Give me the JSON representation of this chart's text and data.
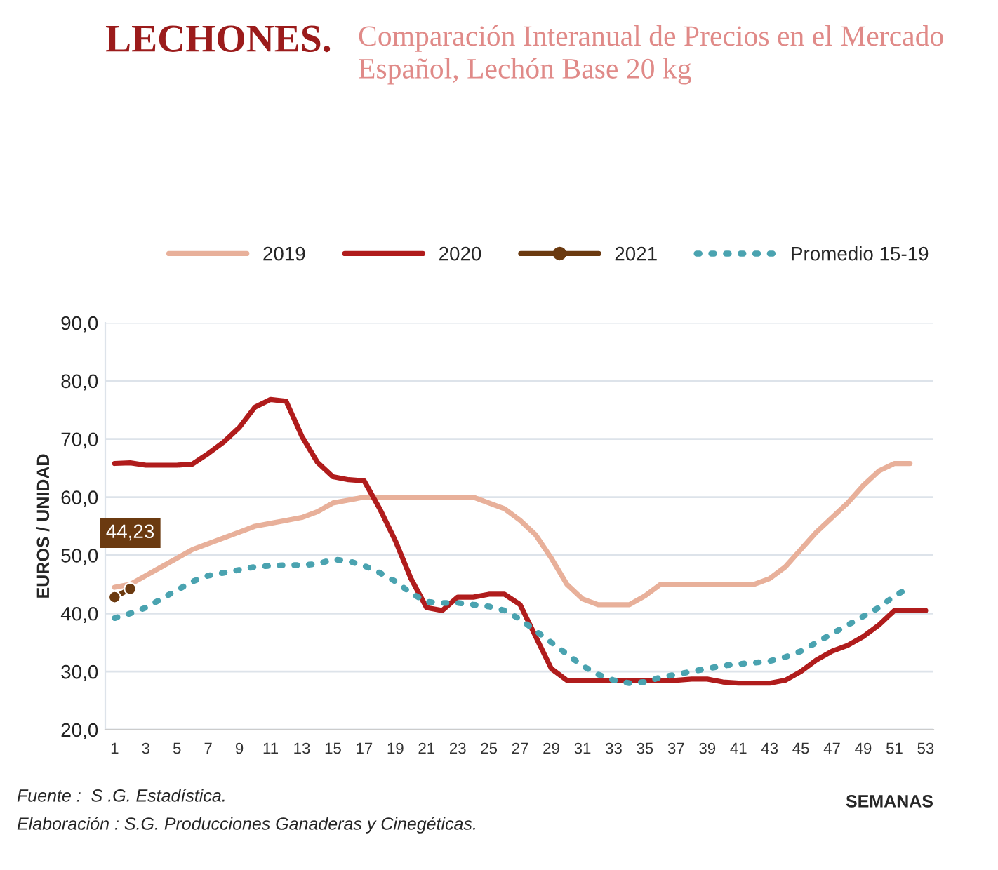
{
  "chart_data": {
    "type": "line",
    "title": "LECHONES.",
    "subtitle": "Comparación Interanual de Precios en el Mercado Español, Lechón Base 20 kg",
    "xlabel": "SEMANAS",
    "ylabel": "EUROS / UNIDAD",
    "x": [
      1,
      2,
      3,
      4,
      5,
      6,
      7,
      8,
      9,
      10,
      11,
      12,
      13,
      14,
      15,
      16,
      17,
      18,
      19,
      20,
      21,
      22,
      23,
      24,
      25,
      26,
      27,
      28,
      29,
      30,
      31,
      32,
      33,
      34,
      35,
      36,
      37,
      38,
      39,
      40,
      41,
      42,
      43,
      44,
      45,
      46,
      47,
      48,
      49,
      50,
      51,
      52,
      53
    ],
    "series": [
      {
        "name": "2019",
        "color": "#e8b09a",
        "line_style": "solid",
        "marker": "none",
        "values": [
          44.5,
          45,
          46.5,
          48,
          49.5,
          51,
          52,
          53,
          54,
          55,
          55.5,
          56,
          56.5,
          57.5,
          59,
          59.5,
          60,
          60,
          60,
          60,
          60,
          60,
          60,
          60,
          59,
          58,
          56,
          53.5,
          49.5,
          45,
          42.5,
          41.5,
          41.5,
          41.5,
          43,
          45,
          45,
          45,
          45,
          45,
          45,
          45,
          46,
          48,
          51,
          54,
          56.5,
          59,
          62,
          64.5,
          65.8,
          65.8,
          null
        ]
      },
      {
        "name": "2020",
        "color": "#b01c1c",
        "line_style": "solid",
        "marker": "none",
        "values": [
          65.8,
          65.9,
          65.5,
          65.5,
          65.5,
          65.7,
          67.5,
          69.5,
          72,
          75.5,
          76.8,
          76.5,
          70.5,
          66,
          63.5,
          63,
          62.8,
          58,
          52.5,
          46,
          41,
          40.5,
          42.8,
          42.8,
          43.3,
          43.3,
          41.5,
          36,
          30.5,
          28.5,
          28.5,
          28.5,
          28.5,
          28.5,
          28.5,
          28.5,
          28.5,
          28.7,
          28.7,
          28.2,
          28,
          28,
          28,
          28.5,
          30,
          32,
          33.5,
          34.5,
          36,
          38,
          40.5,
          40.5,
          40.5
        ]
      },
      {
        "name": "2021",
        "color": "#6b3a10",
        "line_style": "solid",
        "marker": "circle",
        "values": [
          42.8,
          44.23,
          null,
          null,
          null,
          null,
          null,
          null,
          null,
          null,
          null,
          null,
          null,
          null,
          null,
          null,
          null,
          null,
          null,
          null,
          null,
          null,
          null,
          null,
          null,
          null,
          null,
          null,
          null,
          null,
          null,
          null,
          null,
          null,
          null,
          null,
          null,
          null,
          null,
          null,
          null,
          null,
          null,
          null,
          null,
          null,
          null,
          null,
          null,
          null,
          null,
          null,
          null
        ],
        "value_labels": [
          null,
          "44,23",
          null,
          null,
          null,
          null,
          null,
          null,
          null,
          null,
          null,
          null,
          null,
          null,
          null,
          null,
          null,
          null,
          null,
          null,
          null,
          null,
          null,
          null,
          null,
          null,
          null,
          null,
          null,
          null,
          null,
          null,
          null,
          null,
          null,
          null,
          null,
          null,
          null,
          null,
          null,
          null,
          null,
          null,
          null,
          null,
          null,
          null,
          null,
          null,
          null,
          null,
          null
        ]
      },
      {
        "name": "Promedio 15-19",
        "color": "#4aa3b0",
        "line_style": "dotted",
        "marker": "none",
        "values": [
          39.2,
          40,
          41,
          42.5,
          44,
          45.5,
          46.5,
          47,
          47.5,
          48,
          48.2,
          48.3,
          48.3,
          48.5,
          49.3,
          49,
          48.2,
          47,
          45.5,
          43.5,
          42,
          41.8,
          41.8,
          41.5,
          41.2,
          40.5,
          39,
          37,
          35,
          33,
          31,
          29.5,
          28.5,
          28,
          28.2,
          29,
          29.5,
          30,
          30.5,
          31,
          31.3,
          31.5,
          31.8,
          32.5,
          33.5,
          35,
          36.5,
          38,
          39.5,
          41,
          43,
          44.5,
          null
        ]
      }
    ],
    "xlim": [
      0.4,
      53.5
    ],
    "xticks": [
      1,
      3,
      5,
      7,
      9,
      11,
      13,
      15,
      17,
      19,
      21,
      23,
      25,
      27,
      29,
      31,
      33,
      35,
      37,
      39,
      41,
      43,
      45,
      47,
      49,
      51,
      53
    ],
    "ylim": [
      20,
      90
    ],
    "yticks": [
      {
        "value": 20,
        "label": "20,0"
      },
      {
        "value": 30,
        "label": "30,0"
      },
      {
        "value": 40,
        "label": "40,0"
      },
      {
        "value": 50,
        "label": "50,0"
      },
      {
        "value": 60,
        "label": "60,0"
      },
      {
        "value": 70,
        "label": "70,0"
      },
      {
        "value": 80,
        "label": "80,0"
      },
      {
        "value": 90,
        "label": "90,0"
      }
    ],
    "grid": "y",
    "legend": "top",
    "annotations": [
      "Fuente :  S .G. Estadística.",
      "Elaboración : S.G. Producciones Ganaderas y Cinegéticas."
    ]
  }
}
